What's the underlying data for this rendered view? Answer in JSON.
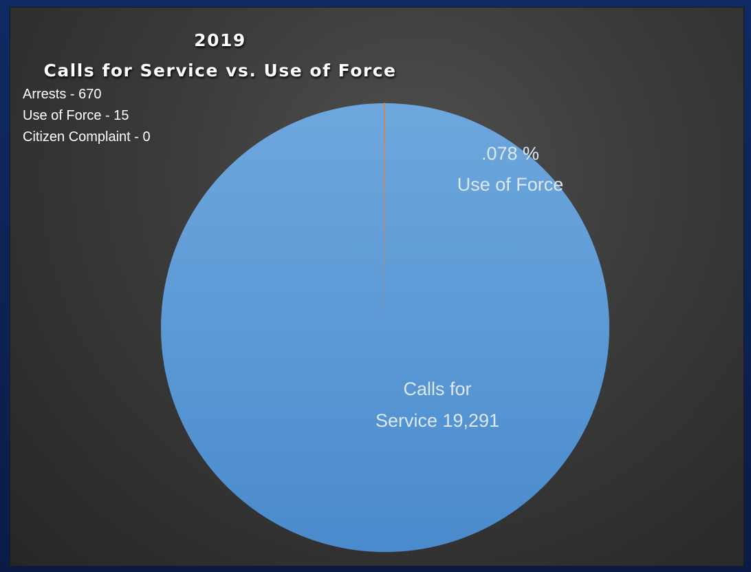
{
  "chart_data": {
    "type": "pie",
    "title": "2019",
    "subtitle": "Calls for Service vs. Use of Force",
    "categories": [
      "Calls for Service",
      "Use of Force"
    ],
    "values": [
      19291,
      15
    ],
    "colors": [
      "#5b9bd5",
      "#ed7d31"
    ],
    "data_labels": [
      [
        "Calls for",
        "Service 19,291"
      ],
      [
        ".078 %",
        "Use of Force"
      ]
    ],
    "annotations": [
      "Arrests - 670",
      "Use of Force - 15",
      "Citizen Complaint - 0"
    ],
    "legend": "none"
  }
}
